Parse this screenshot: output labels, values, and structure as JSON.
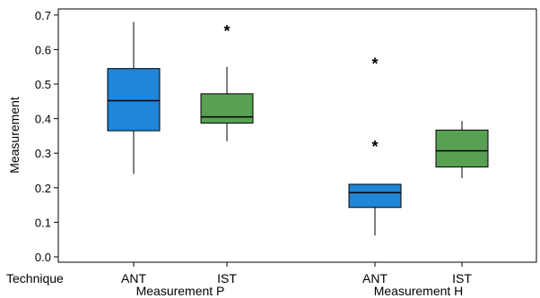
{
  "chart_data": {
    "type": "boxplot",
    "ylabel": "Measurement",
    "ylim": [
      0,
      0.72
    ],
    "yticks": [
      "0.0",
      "0.1",
      "0.2",
      "0.3",
      "0.4",
      "0.5",
      "0.6",
      "0.7"
    ],
    "yticks_values": [
      0,
      0.1,
      0.2,
      0.3,
      0.4,
      0.5,
      0.6,
      0.7
    ],
    "row_label": "Technique",
    "colors": {
      "ANT": "#1f86d9",
      "IST": "#58a152"
    },
    "groups": [
      {
        "name": "Measurement P",
        "boxes": [
          {
            "technique": "ANT",
            "whisker_low": 0.24,
            "q1": 0.365,
            "median": 0.452,
            "q3": 0.545,
            "whisker_high": 0.68,
            "outliers": []
          },
          {
            "technique": "IST",
            "whisker_low": 0.335,
            "q1": 0.387,
            "median": 0.405,
            "q3": 0.472,
            "whisker_high": 0.55,
            "outliers": [
              0.66
            ]
          }
        ]
      },
      {
        "name": "Measurement H",
        "boxes": [
          {
            "technique": "ANT",
            "whisker_low": 0.062,
            "q1": 0.143,
            "median": 0.186,
            "q3": 0.21,
            "whisker_high": 0.21,
            "outliers": [
              0.327,
              0.566
            ]
          },
          {
            "technique": "IST",
            "whisker_low": 0.228,
            "q1": 0.26,
            "median": 0.307,
            "q3": 0.367,
            "whisker_high": 0.393,
            "outliers": []
          }
        ]
      }
    ]
  }
}
